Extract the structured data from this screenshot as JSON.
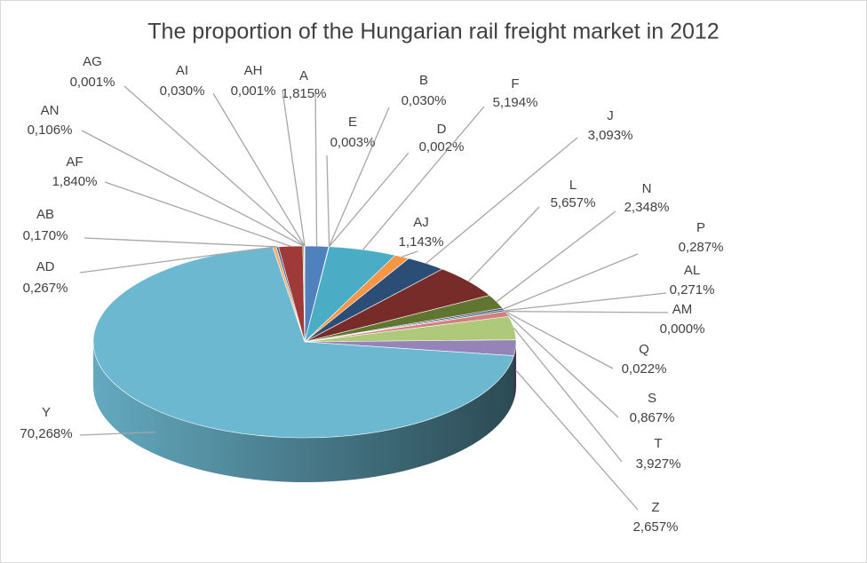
{
  "chart_data": {
    "type": "pie3d",
    "title": "The proportion of the Hungarian rail freight market in 2012",
    "categories": [
      "A",
      "B",
      "E",
      "D",
      "F",
      "AJ",
      "J",
      "L",
      "N",
      "P",
      "AL",
      "AM",
      "Q",
      "S",
      "T",
      "Z",
      "Y",
      "AD",
      "AB",
      "AF",
      "AN",
      "AG",
      "AI",
      "AH"
    ],
    "values": [
      1.815,
      0.03,
      0.003,
      0.002,
      5.194,
      1.143,
      3.093,
      5.657,
      2.348,
      0.287,
      0.271,
      0.0,
      0.022,
      0.867,
      3.927,
      2.657,
      70.268,
      0.267,
      0.17,
      1.84,
      0.106,
      0.001,
      0.03,
      0.001
    ],
    "value_labels": [
      "1,815%",
      "0,030%",
      "0,003%",
      "0,002%",
      "5,194%",
      "1,143%",
      "3,093%",
      "5,657%",
      "2,348%",
      "0,287%",
      "0,271%",
      "0,000%",
      "0,022%",
      "0,867%",
      "3,927%",
      "2,657%",
      "70,268%",
      "0,267%",
      "0,170%",
      "1,840%",
      "0,106%",
      "0,001%",
      "0,030%",
      "0,001%"
    ],
    "colors": [
      "#4f81bd",
      "#c0504d",
      "#9bbb59",
      "#8064a2",
      "#4bacc6",
      "#f79646",
      "#2c4d75",
      "#772c2a",
      "#5f7530",
      "#4d3b62",
      "#276a7c",
      "#b65708",
      "#729aca",
      "#d4807e",
      "#afc97a",
      "#9584b8",
      "#6cb8d0",
      "#f9ab6b",
      "#3a6599",
      "#a03a38",
      "#7e9a47",
      "#6a5086",
      "#3893ab",
      "#d5801f"
    ]
  }
}
